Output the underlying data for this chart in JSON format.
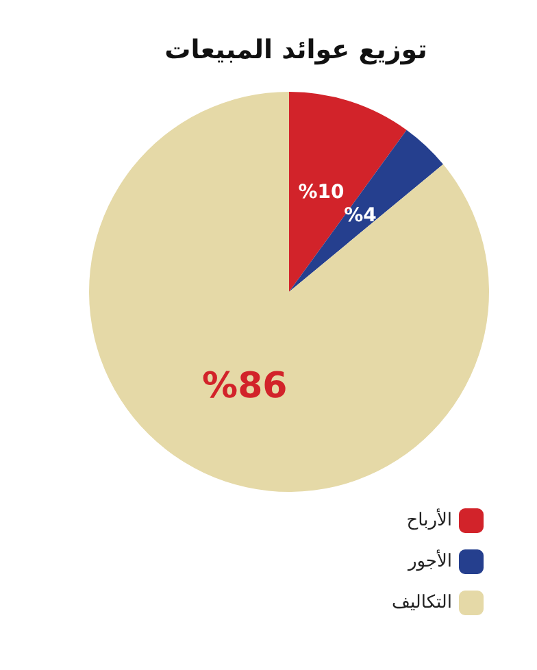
{
  "chart_data": {
    "type": "pie",
    "title": "توزيع عوائد المبيعات",
    "categories": [
      "الأرباح",
      "الأجور",
      "التكاليف"
    ],
    "values": [
      10,
      4,
      86
    ],
    "colors": [
      "#d2232a",
      "#253f8e",
      "#e5d9a7"
    ],
    "value_labels": [
      "%10",
      "%4",
      "%86"
    ],
    "legend": "bottom right"
  }
}
